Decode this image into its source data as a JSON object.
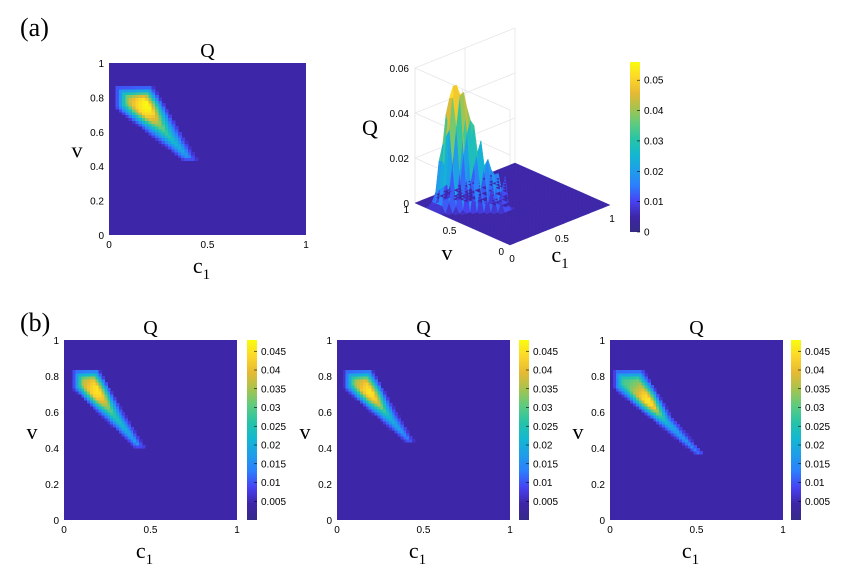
{
  "panel_labels": [
    "(a)",
    "(b)"
  ],
  "colors": {
    "background_field": "#3e26a8",
    "parula_stops": [
      "#352a87",
      "#3e26a8",
      "#4743f3",
      "#2c7ffc",
      "#1e9ee9",
      "#13b8d0",
      "#27c4a6",
      "#5ecb7f",
      "#a6c34e",
      "#e6b933",
      "#fcd72a",
      "#f9fb0e"
    ]
  },
  "chart_data": [
    {
      "type": "heatmap",
      "panel": "a",
      "title": "Q",
      "xlabel": "c",
      "xlabel_subscript": "1",
      "ylabel": "v",
      "xlim": [
        0,
        1
      ],
      "ylim": [
        0,
        1
      ],
      "xticks": [
        "0",
        "0.5",
        "1"
      ],
      "yticks": [
        "0",
        "0.2",
        "0.4",
        "0.6",
        "0.8",
        "1"
      ],
      "value_range": [
        0,
        0.055
      ],
      "support_polygon": [
        [
          0.03,
          0.87
        ],
        [
          0.22,
          0.87
        ],
        [
          0.3,
          0.72
        ],
        [
          0.45,
          0.43
        ],
        [
          0.38,
          0.43
        ],
        [
          0.03,
          0.74
        ]
      ],
      "peak": {
        "c1": 0.2,
        "v": 0.76,
        "Q": 0.055
      }
    },
    {
      "type": "surface3d",
      "panel": "a",
      "zlabel": "Q",
      "xlabel": "c",
      "xlabel_subscript": "1",
      "ylabel": "v",
      "zlim": [
        0,
        0.06
      ],
      "zticks": [
        "0",
        "0.02",
        "0.04",
        "0.06"
      ],
      "xticks": [
        "0",
        "0.5",
        "1"
      ],
      "yticks": [
        "0",
        "0.5",
        "1"
      ],
      "colorbar_ticks": [
        "0",
        "0.01",
        "0.02",
        "0.03",
        "0.04",
        "0.05"
      ],
      "colorbar_range": [
        0,
        0.056
      ],
      "peak": {
        "c1": 0.2,
        "v": 0.76,
        "Q": 0.055
      }
    },
    {
      "type": "heatmap",
      "panel": "b",
      "title": "Q",
      "xlabel": "c",
      "xlabel_subscript": "1",
      "ylabel": "v",
      "xlim": [
        0,
        1
      ],
      "ylim": [
        0,
        1
      ],
      "xticks": [
        "0",
        "0.5",
        "1"
      ],
      "yticks": [
        "0",
        "0.2",
        "0.4",
        "0.6",
        "0.8",
        "1"
      ],
      "colorbar_ticks": [
        "0.005",
        "0.01",
        "0.015",
        "0.02",
        "0.025",
        "0.03",
        "0.035",
        "0.04",
        "0.045"
      ],
      "value_range": [
        0,
        0.048
      ],
      "support_polygon": [
        [
          0.05,
          0.84
        ],
        [
          0.2,
          0.84
        ],
        [
          0.33,
          0.62
        ],
        [
          0.47,
          0.4
        ],
        [
          0.41,
          0.4
        ],
        [
          0.05,
          0.73
        ]
      ],
      "peak": {
        "c1": 0.2,
        "v": 0.73,
        "Q": 0.045
      }
    },
    {
      "type": "heatmap",
      "panel": "b",
      "title": "Q",
      "xlabel": "c",
      "xlabel_subscript": "1",
      "ylabel": "v",
      "xlim": [
        0,
        1
      ],
      "ylim": [
        0,
        1
      ],
      "xticks": [
        "0",
        "0.5",
        "1"
      ],
      "yticks": [
        "0",
        "0.2",
        "0.4",
        "0.6",
        "0.8",
        "1"
      ],
      "colorbar_ticks": [
        "0.005",
        "0.01",
        "0.015",
        "0.02",
        "0.025",
        "0.03",
        "0.035",
        "0.04",
        "0.045"
      ],
      "value_range": [
        0,
        0.048
      ],
      "support_polygon": [
        [
          0.04,
          0.84
        ],
        [
          0.2,
          0.84
        ],
        [
          0.33,
          0.62
        ],
        [
          0.45,
          0.43
        ],
        [
          0.4,
          0.43
        ],
        [
          0.04,
          0.73
        ]
      ],
      "peak": {
        "c1": 0.2,
        "v": 0.72,
        "Q": 0.045
      }
    },
    {
      "type": "heatmap",
      "panel": "b",
      "title": "Q",
      "xlabel": "c",
      "xlabel_subscript": "1",
      "ylabel": "v",
      "xlim": [
        0,
        1
      ],
      "ylim": [
        0,
        1
      ],
      "xticks": [
        "0",
        "0.5",
        "1"
      ],
      "yticks": [
        "0",
        "0.2",
        "0.4",
        "0.6",
        "0.8",
        "1"
      ],
      "colorbar_ticks": [
        "0.005",
        "0.01",
        "0.015",
        "0.02",
        "0.025",
        "0.03",
        "0.035",
        "0.04",
        "0.045"
      ],
      "value_range": [
        0,
        0.048
      ],
      "support_polygon": [
        [
          0.02,
          0.84
        ],
        [
          0.19,
          0.84
        ],
        [
          0.36,
          0.57
        ],
        [
          0.55,
          0.36
        ],
        [
          0.5,
          0.36
        ],
        [
          0.02,
          0.73
        ]
      ],
      "peak": {
        "c1": 0.23,
        "v": 0.67,
        "Q": 0.045
      }
    }
  ]
}
